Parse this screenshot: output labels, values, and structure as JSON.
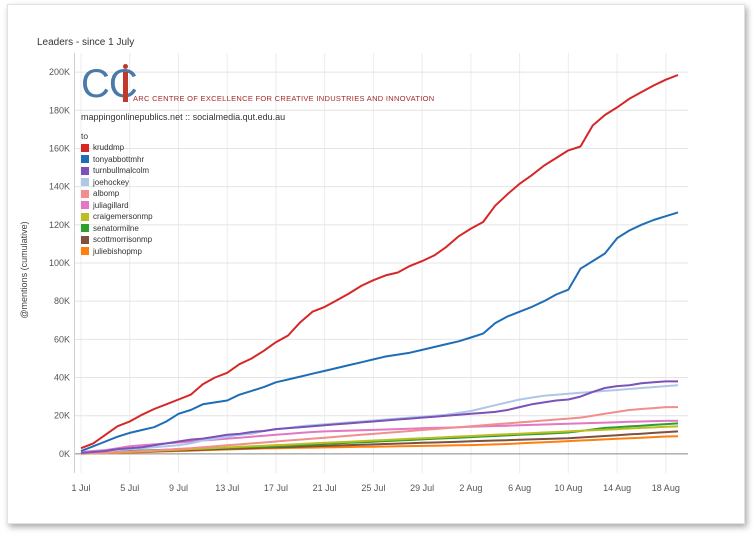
{
  "chart_data": {
    "type": "line",
    "title": "Leaders - since 1 July",
    "ylabel": "@mentions (cumulative)",
    "xlabel": "",
    "ylim": [
      -10000,
      210000
    ],
    "x_range": [
      "1 Jul",
      "19 Aug"
    ],
    "grid": true,
    "y_ticks": [
      {
        "value": 0,
        "label": "0K"
      },
      {
        "value": 20000,
        "label": "20K"
      },
      {
        "value": 40000,
        "label": "40K"
      },
      {
        "value": 60000,
        "label": "60K"
      },
      {
        "value": 80000,
        "label": "80K"
      },
      {
        "value": 100000,
        "label": "100K"
      },
      {
        "value": 120000,
        "label": "120K"
      },
      {
        "value": 140000,
        "label": "140K"
      },
      {
        "value": 160000,
        "label": "160K"
      },
      {
        "value": 180000,
        "label": "180K"
      },
      {
        "value": 200000,
        "label": "200K"
      }
    ],
    "x_ticks": [
      "1 Jul",
      "5 Jul",
      "9 Jul",
      "13 Jul",
      "17 Jul",
      "21 Jul",
      "25 Jul",
      "29 Jul",
      "2 Aug",
      "6 Aug",
      "10 Aug",
      "14 Aug",
      "18 Aug"
    ],
    "x_dates": [
      "1 Jul",
      "2 Jul",
      "3 Jul",
      "4 Jul",
      "5 Jul",
      "6 Jul",
      "7 Jul",
      "8 Jul",
      "9 Jul",
      "10 Jul",
      "11 Jul",
      "12 Jul",
      "13 Jul",
      "14 Jul",
      "15 Jul",
      "16 Jul",
      "17 Jul",
      "18 Jul",
      "19 Jul",
      "20 Jul",
      "21 Jul",
      "22 Jul",
      "23 Jul",
      "24 Jul",
      "25 Jul",
      "26 Jul",
      "27 Jul",
      "28 Jul",
      "29 Jul",
      "30 Jul",
      "31 Jul",
      "1 Aug",
      "2 Aug",
      "3 Aug",
      "4 Aug",
      "5 Aug",
      "6 Aug",
      "7 Aug",
      "8 Aug",
      "9 Aug",
      "10 Aug",
      "11 Aug",
      "12 Aug",
      "13 Aug",
      "14 Aug",
      "15 Aug",
      "16 Aug",
      "17 Aug",
      "18 Aug",
      "19 Aug"
    ],
    "legend_title": "to",
    "legend_position": "top-left",
    "series": [
      {
        "name": "kruddmp",
        "color": "#d62728",
        "values": [
          3000,
          5500,
          10000,
          14500,
          17000,
          20500,
          23500,
          26000,
          28500,
          31000,
          36500,
          40000,
          42500,
          47000,
          50000,
          54000,
          58500,
          62000,
          69000,
          74500,
          77000,
          80500,
          84000,
          88000,
          91000,
          93500,
          95000,
          98500,
          101000,
          104000,
          108500,
          114000,
          118000,
          121500,
          130000,
          136000,
          141500,
          146000,
          151000,
          155000,
          159000,
          161000,
          172000,
          177500,
          181500,
          186000,
          189500,
          193000,
          196000,
          198500
        ]
      },
      {
        "name": "tonyabbottmhr",
        "color": "#1f6eb5",
        "values": [
          1500,
          4000,
          6500,
          9000,
          11000,
          12500,
          14000,
          17000,
          21000,
          23000,
          26000,
          27000,
          28000,
          31000,
          33000,
          35000,
          37500,
          39000,
          40500,
          42000,
          43500,
          45000,
          46500,
          48000,
          49500,
          51000,
          52000,
          53000,
          54500,
          56000,
          57500,
          59000,
          61000,
          63000,
          68500,
          72000,
          74500,
          77000,
          80000,
          83500,
          86000,
          97000,
          101000,
          105000,
          113000,
          117000,
          120000,
          122500,
          124500,
          126500
        ]
      },
      {
        "name": "turnbullmalcolm",
        "color": "#7b52b9",
        "values": [
          500,
          1000,
          1500,
          2500,
          3000,
          3500,
          4500,
          5500,
          6500,
          7500,
          8000,
          9000,
          10000,
          10500,
          11500,
          12000,
          13000,
          13500,
          14000,
          14500,
          15000,
          15500,
          16000,
          16500,
          17000,
          17500,
          18000,
          18500,
          19000,
          19500,
          20000,
          20500,
          21000,
          21500,
          22000,
          23000,
          24500,
          26000,
          27000,
          28000,
          28500,
          30000,
          32500,
          34500,
          35500,
          36000,
          37000,
          37500,
          38000,
          38000
        ]
      },
      {
        "name": "joehockey",
        "color": "#aec7e8",
        "values": [
          500,
          1000,
          1500,
          2000,
          2500,
          3000,
          3500,
          4000,
          4500,
          5500,
          7000,
          8000,
          9000,
          10000,
          10500,
          12000,
          13000,
          13500,
          14500,
          15000,
          15500,
          16000,
          16500,
          17000,
          17500,
          18000,
          18500,
          19000,
          19500,
          20000,
          20500,
          21500,
          22500,
          24000,
          25500,
          27000,
          28500,
          29500,
          30500,
          31000,
          31500,
          32000,
          32500,
          33000,
          33500,
          34000,
          34500,
          35000,
          35500,
          36000
        ]
      },
      {
        "name": "albomp",
        "color": "#f28e8e",
        "values": [
          200,
          400,
          600,
          900,
          1200,
          1500,
          1800,
          2200,
          2600,
          3000,
          3500,
          4000,
          4500,
          5000,
          5500,
          6000,
          6500,
          7000,
          7500,
          8000,
          8500,
          9000,
          9500,
          10000,
          10500,
          11000,
          11500,
          12000,
          12500,
          13000,
          13500,
          14000,
          14500,
          15000,
          15500,
          16000,
          16500,
          17000,
          17500,
          18000,
          18500,
          19000,
          20000,
          21000,
          22000,
          23000,
          23500,
          24000,
          24500,
          24500
        ]
      },
      {
        "name": "juliagillard",
        "color": "#e377c2",
        "values": [
          1000,
          1500,
          2000,
          3000,
          4000,
          4500,
          5000,
          5500,
          6000,
          6500,
          7000,
          7500,
          8000,
          8500,
          9000,
          9500,
          10000,
          10500,
          11000,
          11500,
          11800,
          12000,
          12200,
          12400,
          12600,
          12800,
          13000,
          13200,
          13400,
          13600,
          13800,
          14000,
          14200,
          14400,
          14600,
          14800,
          15000,
          15200,
          15400,
          15600,
          15800,
          16000,
          16200,
          16400,
          16600,
          16800,
          17000,
          17200,
          17300,
          17400
        ]
      },
      {
        "name": "craigemersonmp",
        "color": "#bcbd22",
        "values": [
          100,
          300,
          500,
          800,
          1000,
          1300,
          1600,
          1900,
          2200,
          2500,
          2800,
          3100,
          3400,
          3700,
          4000,
          4300,
          4600,
          4900,
          5200,
          5500,
          5800,
          6100,
          6400,
          6700,
          7000,
          7300,
          7600,
          7900,
          8200,
          8500,
          8800,
          9100,
          9400,
          9700,
          10000,
          10300,
          10600,
          10900,
          11200,
          11500,
          11800,
          12100,
          12400,
          12700,
          13000,
          13300,
          13600,
          13900,
          14200,
          14400
        ]
      },
      {
        "name": "senatormilne",
        "color": "#2ca02c",
        "values": [
          300,
          600,
          900,
          1200,
          1500,
          1800,
          2000,
          2200,
          2400,
          2600,
          2800,
          3000,
          3200,
          3400,
          3600,
          3800,
          4000,
          4300,
          4600,
          4900,
          5200,
          5500,
          5800,
          6100,
          6400,
          6700,
          7000,
          7300,
          7600,
          7900,
          8200,
          8500,
          8800,
          9100,
          9400,
          9700,
          10000,
          10300,
          10600,
          10900,
          11200,
          12000,
          12800,
          13600,
          14000,
          14400,
          14800,
          15200,
          15600,
          16000
        ]
      },
      {
        "name": "scottmorrisonmp",
        "color": "#7f4f3f",
        "values": [
          200,
          400,
          600,
          800,
          1000,
          1200,
          1400,
          1600,
          1800,
          2000,
          2200,
          2400,
          2600,
          2800,
          3000,
          3200,
          3400,
          3600,
          3800,
          4000,
          4200,
          4400,
          4600,
          4800,
          5000,
          5200,
          5400,
          5600,
          5800,
          6000,
          6200,
          6400,
          6600,
          6800,
          7000,
          7200,
          7400,
          7600,
          7800,
          8000,
          8200,
          8600,
          9000,
          9400,
          9800,
          10200,
          10600,
          11000,
          11400,
          11800
        ]
      },
      {
        "name": "juliebishopmp",
        "color": "#ff7f0e",
        "values": [
          100,
          200,
          300,
          500,
          700,
          900,
          1100,
          1300,
          1500,
          1700,
          1900,
          2100,
          2300,
          2500,
          2700,
          2900,
          3000,
          3100,
          3200,
          3300,
          3400,
          3500,
          3600,
          3700,
          3800,
          3900,
          4000,
          4100,
          4200,
          4300,
          4400,
          4500,
          4600,
          4800,
          5000,
          5200,
          5500,
          5800,
          6100,
          6400,
          6700,
          7000,
          7300,
          7600,
          7900,
          8200,
          8500,
          8800,
          9100,
          9300
        ]
      }
    ]
  },
  "logo": {
    "mark": "CC",
    "org_name": "ARC CENTRE OF EXCELLENCE FOR CREATIVE INDUSTRIES AND INNOVATION",
    "site": "mappingonlinepublics.net :: socialmedia.qut.edu.au"
  }
}
